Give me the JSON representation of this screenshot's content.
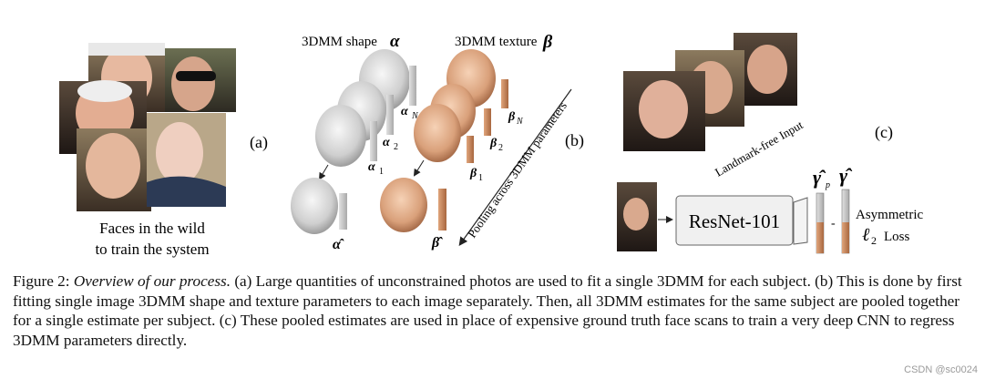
{
  "figure": {
    "panel_a": {
      "marker": "(a)",
      "caption_lines": [
        "Faces in the wild",
        "to train the system"
      ]
    },
    "panel_b": {
      "marker": "(b)",
      "shape_title": "3DMM shape",
      "shape_symbol": "α",
      "texture_title": "3DMM texture",
      "texture_symbol": "β",
      "pooling_label": "Pooling across 3DMM parameters",
      "shape_labels": [
        "α",
        "α",
        "α"
      ],
      "shape_subscripts": [
        "N",
        "2",
        "1"
      ],
      "texture_labels": [
        "β",
        "β",
        "β"
      ],
      "texture_subscripts": [
        "N",
        "2",
        "1"
      ],
      "pooled_shape_label": "α̂",
      "pooled_texture_label": "β̂"
    },
    "panel_c": {
      "marker": "(c)",
      "input_label": "Landmark-free Input",
      "network_label": "ResNet-101",
      "gamma_p": "γ̂",
      "gamma_p_sub": "p",
      "gamma": "γ̂",
      "loss_line1": "Asymmetric",
      "loss_symbol": "ℓ",
      "loss_sub": "2",
      "loss_word": "Loss",
      "minus": "-"
    }
  },
  "caption": {
    "label": "Figure 2:",
    "title": "Overview of our process.",
    "body": "(a) Large quantities of unconstrained photos are used to fit a single 3DMM for each subject. (b) This is done by first fitting single image 3DMM shape and texture parameters to each image separately. Then, all 3DMM estimates for the same subject are pooled together for a single estimate per subject. (c) These pooled estimates are used in place of expensive ground truth face scans to train a very deep CNN to regress 3DMM parameters directly."
  },
  "watermark": "CSDN @sc0024",
  "colors": {
    "skin": "#d9a07a",
    "gray_mesh": "#cfcfcf",
    "bar_copper": "#c98b62",
    "bar_gray": "#c8c8c8",
    "photo_dark": "#3a2a22"
  }
}
